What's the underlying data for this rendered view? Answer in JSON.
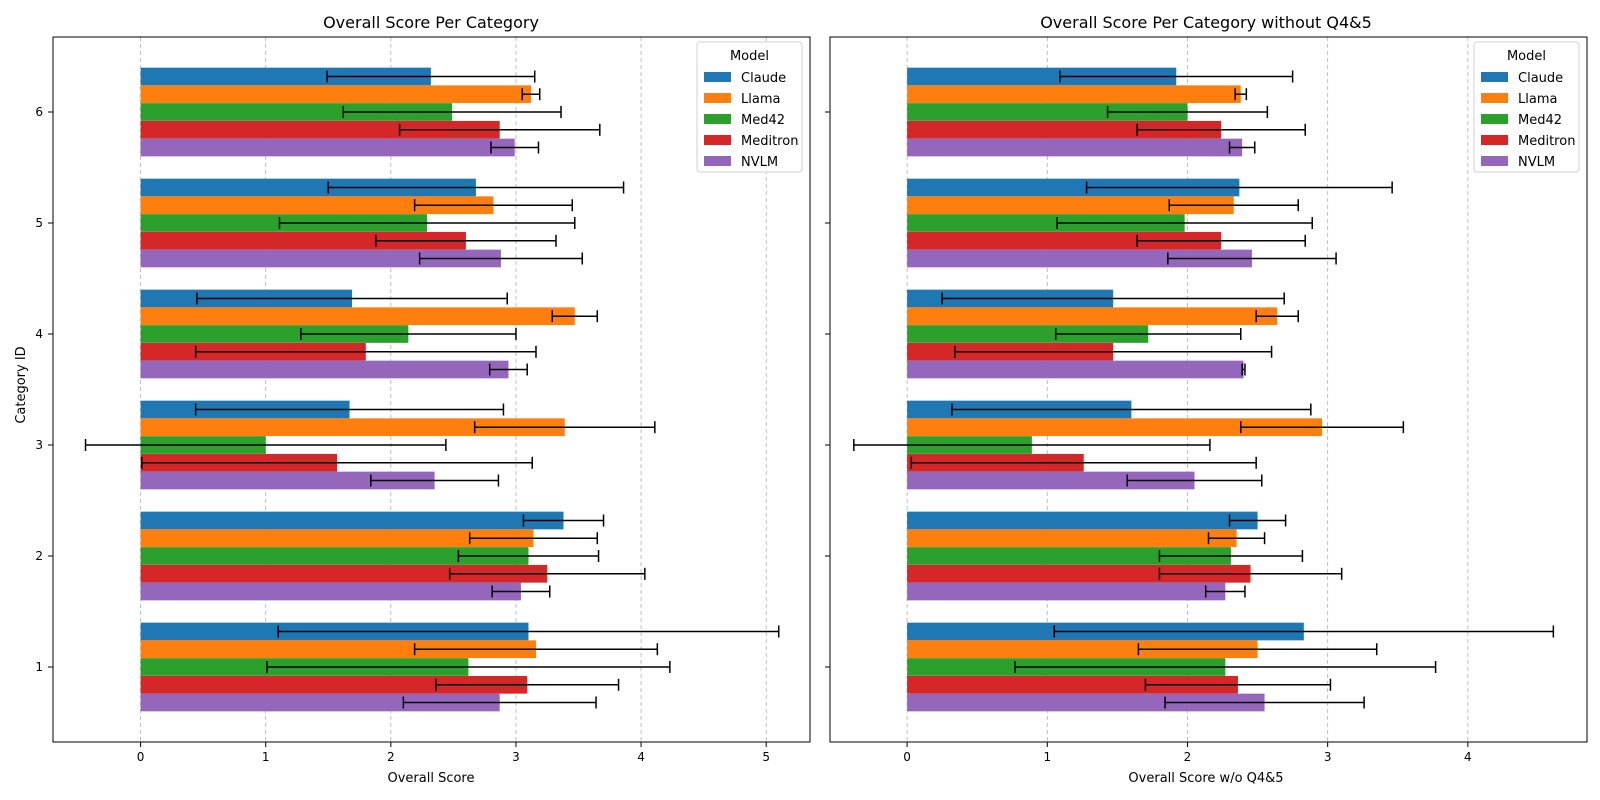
{
  "chart_data": [
    {
      "type": "bar",
      "orientation": "horizontal",
      "title": "Overall Score Per Category",
      "xlabel": "Overall Score",
      "ylabel": "Category ID",
      "xlim": [
        -0.7,
        5.35
      ],
      "xticks": [
        0,
        1,
        2,
        3,
        4,
        5
      ],
      "categories": [
        "1",
        "2",
        "3",
        "4",
        "5",
        "6"
      ],
      "grid": "x dashed",
      "legend": {
        "title": "Model",
        "placement": "top-right"
      },
      "series": [
        {
          "name": "Claude",
          "color": "#1f77b4",
          "values": [
            3.1,
            3.38,
            1.67,
            1.69,
            2.68,
            2.32
          ],
          "errors": [
            2.0,
            0.32,
            1.23,
            1.24,
            1.18,
            0.83
          ]
        },
        {
          "name": "Llama",
          "color": "#ff7f0e",
          "values": [
            3.16,
            3.14,
            3.39,
            3.47,
            2.82,
            3.12
          ],
          "errors": [
            0.97,
            0.51,
            0.72,
            0.18,
            0.63,
            0.07
          ]
        },
        {
          "name": "Med42",
          "color": "#2ca02c",
          "values": [
            2.62,
            3.1,
            1.0,
            2.14,
            2.29,
            2.49
          ],
          "errors": [
            1.61,
            0.56,
            1.44,
            0.86,
            1.18,
            0.87
          ]
        },
        {
          "name": "Meditron",
          "color": "#d62728",
          "values": [
            3.09,
            3.25,
            1.57,
            1.8,
            2.6,
            2.87
          ],
          "errors": [
            0.73,
            0.78,
            1.56,
            1.36,
            0.72,
            0.8
          ]
        },
        {
          "name": "NVLM",
          "color": "#9467bd",
          "values": [
            2.87,
            3.04,
            2.35,
            2.94,
            2.88,
            2.99
          ],
          "errors": [
            0.77,
            0.23,
            0.51,
            0.15,
            0.65,
            0.19
          ]
        }
      ]
    },
    {
      "type": "bar",
      "orientation": "horizontal",
      "title": "Overall Score Per Category without Q4&5",
      "xlabel": "Overall Score w/o Q4&5",
      "ylabel": "",
      "xlim": [
        -0.55,
        4.85
      ],
      "xticks": [
        0,
        1,
        2,
        3,
        4
      ],
      "categories": [
        "1",
        "2",
        "3",
        "4",
        "5",
        "6"
      ],
      "grid": "x dashed",
      "legend": {
        "title": "Model",
        "placement": "top-right"
      },
      "series": [
        {
          "name": "Claude",
          "color": "#1f77b4",
          "values": [
            2.83,
            2.5,
            1.6,
            1.47,
            2.37,
            1.92
          ],
          "errors": [
            1.78,
            0.2,
            1.28,
            1.22,
            1.09,
            0.83
          ]
        },
        {
          "name": "Llama",
          "color": "#ff7f0e",
          "values": [
            2.5,
            2.35,
            2.96,
            2.64,
            2.33,
            2.38
          ],
          "errors": [
            0.85,
            0.2,
            0.58,
            0.15,
            0.46,
            0.04
          ]
        },
        {
          "name": "Med42",
          "color": "#2ca02c",
          "values": [
            2.27,
            2.31,
            0.89,
            1.72,
            1.98,
            2.0
          ],
          "errors": [
            1.5,
            0.51,
            1.27,
            0.66,
            0.91,
            0.57
          ]
        },
        {
          "name": "Meditron",
          "color": "#d62728",
          "values": [
            2.36,
            2.45,
            1.26,
            1.47,
            2.24,
            2.24
          ],
          "errors": [
            0.66,
            0.65,
            1.23,
            1.13,
            0.6,
            0.6
          ]
        },
        {
          "name": "NVLM",
          "color": "#9467bd",
          "values": [
            2.55,
            2.27,
            2.05,
            2.4,
            2.46,
            2.39
          ],
          "errors": [
            0.71,
            0.14,
            0.48,
            0.01,
            0.6,
            0.09
          ]
        }
      ]
    }
  ]
}
